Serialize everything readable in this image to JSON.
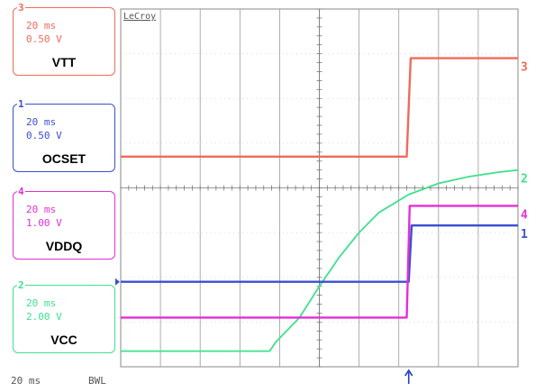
{
  "brand": "LeCroy",
  "channels": [
    {
      "number": "3",
      "timebase": "20 ms",
      "scale": "0.50 V",
      "name": "VTT",
      "color": "#f06a5a"
    },
    {
      "number": "1",
      "timebase": "20 ms",
      "scale": "0.50 V",
      "name": "OCSET",
      "color": "#3a4fd0"
    },
    {
      "number": "4",
      "timebase": "20 ms",
      "scale": "1.00 V",
      "name": "VDDQ",
      "color": "#e22fd6"
    },
    {
      "number": "2",
      "timebase": "20 ms",
      "scale": "2.00 V",
      "name": "VCC",
      "color": "#3ee08e"
    }
  ],
  "footer": {
    "timebase": "20 ms",
    "bwl": "BWL"
  },
  "chart_data": {
    "type": "line",
    "x_unit": "ms",
    "x_range": [
      0,
      200
    ],
    "time_per_div": 20,
    "divisions": {
      "x": 10,
      "y": 8
    },
    "grid": true,
    "trigger_time": 145,
    "series": [
      {
        "name": "VTT",
        "channel": "3",
        "color": "#f06a5a",
        "x": [
          0,
          144,
          146,
          200
        ],
        "y": [
          0.1,
          0.1,
          1.2,
          1.2
        ]
      },
      {
        "name": "OCSET",
        "channel": "1",
        "color": "#3a4fd0",
        "x": [
          0,
          145,
          146.5,
          200
        ],
        "y": [
          0.0,
          0.0,
          0.63,
          0.63
        ]
      },
      {
        "name": "VDDQ",
        "channel": "4",
        "color": "#e22fd6",
        "x": [
          0,
          144,
          145.5,
          200
        ],
        "y": [
          0.0,
          0.0,
          2.5,
          2.5
        ]
      },
      {
        "name": "VCC",
        "channel": "2",
        "color": "#3ee08e",
        "x": [
          0,
          75,
          78,
          90,
          100,
          110,
          120,
          130,
          145,
          160,
          175,
          190,
          200
        ],
        "y": [
          -0.3,
          -0.3,
          0.1,
          1.2,
          2.6,
          3.9,
          5.0,
          5.9,
          6.7,
          7.2,
          7.5,
          7.7,
          7.8
        ]
      }
    ]
  }
}
